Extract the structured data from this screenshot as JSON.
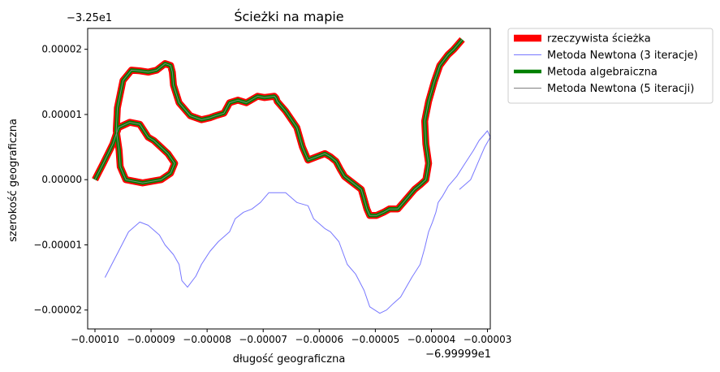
{
  "chart_data": {
    "type": "line",
    "title": "Ścieżki na mapie",
    "xlabel": "długość geograficzna",
    "ylabel": "szerokość geograficzna",
    "x_offset_label": "−6.99999e1",
    "y_offset_label": "−3.25e1",
    "xlim": [
      -0.0001013,
      -2.95e-05
    ],
    "ylim": [
      -2.29e-05,
      2.32e-05
    ],
    "x_ticks": [
      {
        "value": -0.0001,
        "label": "−0.00010"
      },
      {
        "value": -9e-05,
        "label": "−0.00009"
      },
      {
        "value": -8e-05,
        "label": "−0.00008"
      },
      {
        "value": -7e-05,
        "label": "−0.00007"
      },
      {
        "value": -6e-05,
        "label": "−0.00006"
      },
      {
        "value": -5e-05,
        "label": "−0.00005"
      },
      {
        "value": -4e-05,
        "label": "−0.00004"
      },
      {
        "value": -3e-05,
        "label": "−0.00003"
      }
    ],
    "y_ticks": [
      {
        "value": 2e-05,
        "label": "0.00002"
      },
      {
        "value": 1e-05,
        "label": "0.00001"
      },
      {
        "value": 0.0,
        "label": "0.00000"
      },
      {
        "value": -1e-05,
        "label": "−0.00001"
      },
      {
        "value": -2e-05,
        "label": "−0.00002"
      }
    ],
    "grid": false,
    "legend_placement": "outside upper right",
    "series": [
      {
        "name": "rzeczywista ścieżka",
        "color": "#ff0000",
        "style": "thick",
        "x": [
          -0.0001,
          -9.85e-05,
          -9.68e-05,
          -9.58e-05,
          -9.38e-05,
          -9.2e-05,
          -9.05e-05,
          -8.95e-05,
          -8.7e-05,
          -8.58e-05,
          -8.65e-05,
          -8.82e-05,
          -9.15e-05,
          -9.45e-05,
          -9.55e-05,
          -9.57e-05,
          -9.62e-05,
          -9.6e-05,
          -9.5e-05,
          -9.35e-05,
          -9.2e-05,
          -9.05e-05,
          -8.9e-05,
          -8.75e-05,
          -8.65e-05,
          -8.62e-05,
          -8.6e-05,
          -8.5e-05,
          -8.3e-05,
          -8.1e-05,
          -7.95e-05,
          -7.85e-05,
          -7.7e-05,
          -7.6e-05,
          -7.45e-05,
          -7.3e-05,
          -7.1e-05,
          -6.98e-05,
          -6.8e-05,
          -6.77e-05,
          -6.75e-05,
          -6.6e-05,
          -6.4e-05,
          -6.3e-05,
          -6.2e-05,
          -6.05e-05,
          -5.9e-05,
          -5.8e-05,
          -5.7e-05,
          -5.62e-05,
          -5.55e-05,
          -5.4e-05,
          -5.25e-05,
          -5.15e-05,
          -5.1e-05,
          -4.98e-05,
          -4.85e-05,
          -4.75e-05,
          -4.6e-05,
          -4.5e-05,
          -4.4e-05,
          -4.3e-05,
          -4.2e-05,
          -4.1e-05,
          -4.05e-05,
          -4.1e-05,
          -4.12e-05,
          -4.05e-05,
          -3.95e-05,
          -3.85e-05,
          -3.7e-05,
          -3.6e-05,
          -3.45e-05
        ],
        "y": [
          0.0,
          2.5e-06,
          5.5e-06,
          8e-06,
          8.8e-06,
          8.5e-06,
          6.5e-06,
          6e-06,
          4e-06,
          2.5e-06,
          1e-06,
          0.0,
          -5e-07,
          0.0,
          2e-06,
          4.5e-06,
          7.5e-06,
          1.1e-05,
          1.52e-05,
          1.68e-05,
          1.67e-05,
          1.65e-05,
          1.68e-05,
          1.78e-05,
          1.75e-05,
          1.65e-05,
          1.45e-05,
          1.18e-05,
          9.8e-06,
          9.2e-06,
          9.5e-06,
          9.8e-06,
          1.02e-05,
          1.18e-05,
          1.22e-05,
          1.18e-05,
          1.28e-05,
          1.26e-05,
          1.28e-05,
          1.25e-05,
          1.2e-05,
          1.05e-05,
          8e-06,
          5e-06,
          3e-06,
          3.5e-06,
          4e-06,
          3.5e-06,
          2.8e-06,
          1.5e-06,
          5e-07,
          -5e-07,
          -1.5e-06,
          -4.5e-06,
          -5.5e-06,
          -5.5e-06,
          -5e-06,
          -4.5e-06,
          -4.5e-06,
          -3.5e-06,
          -2.5e-06,
          -1.5e-06,
          -8e-07,
          0.0,
          2.5e-06,
          5.5e-06,
          9e-06,
          1.2e-05,
          1.5e-05,
          1.75e-05,
          1.92e-05,
          2e-05,
          2.15e-05
        ]
      },
      {
        "name": "Metoda Newtona (3 iteracje)",
        "color": "#7777ff",
        "style": "thin",
        "x": [
          -9.82e-05,
          -9.7e-05,
          -9.58e-05,
          -9.4e-05,
          -9.2e-05,
          -9.05e-05,
          -8.85e-05,
          -8.75e-05,
          -8.6e-05,
          -8.5e-05,
          -8.45e-05,
          -8.35e-05,
          -8.2e-05,
          -8.1e-05,
          -7.95e-05,
          -7.8e-05,
          -7.6e-05,
          -7.5e-05,
          -7.35e-05,
          -7.2e-05,
          -7.05e-05,
          -6.9e-05,
          -6.8e-05,
          -6.6e-05,
          -6.4e-05,
          -6.2e-05,
          -6.1e-05,
          -5.9e-05,
          -5.8e-05,
          -5.65e-05,
          -5.5e-05,
          -5.35e-05,
          -5.2e-05,
          -5.1e-05,
          -4.92e-05,
          -4.8e-05,
          -4.68e-05,
          -4.55e-05,
          -4.45e-05,
          -4.35e-05,
          -4.2e-05,
          -4.12e-05,
          -4.05e-05,
          -3.98e-05,
          -3.92e-05,
          -3.88e-05,
          -3.8e-05,
          -3.7e-05,
          -3.55e-05,
          -3.4e-05,
          -3.25e-05,
          -3.15e-05,
          -3.05e-05,
          -3e-05,
          -2.95e-05,
          -3.05e-05,
          -3.15e-05,
          -3.25e-05,
          -3.3e-05,
          -3.5e-05
        ],
        "y": [
          -1.5e-05,
          -1.3e-05,
          -1.1e-05,
          -8e-06,
          -6.5e-06,
          -7e-06,
          -8.5e-06,
          -1e-05,
          -1.15e-05,
          -1.3e-05,
          -1.55e-05,
          -1.65e-05,
          -1.48e-05,
          -1.3e-05,
          -1.1e-05,
          -9.5e-06,
          -8e-06,
          -6e-06,
          -5e-06,
          -4.5e-06,
          -3.5e-06,
          -2e-06,
          -2e-06,
          -2e-06,
          -3.5e-06,
          -4e-06,
          -6e-06,
          -7.5e-06,
          -8e-06,
          -9.5e-06,
          -1.3e-05,
          -1.45e-05,
          -1.7e-05,
          -1.95e-05,
          -2.05e-05,
          -2e-05,
          -1.9e-05,
          -1.8e-05,
          -1.65e-05,
          -1.5e-05,
          -1.3e-05,
          -1.05e-05,
          -8e-06,
          -6.5e-06,
          -5e-06,
          -3.5e-06,
          -2.5e-06,
          -1e-06,
          5e-07,
          2.5e-06,
          4.5e-06,
          6e-06,
          7e-06,
          7.5e-06,
          6.5e-06,
          5e-06,
          3e-06,
          1e-06,
          0.0,
          -1.5e-06
        ]
      },
      {
        "name": "Metoda algebraiczna",
        "color": "#008000",
        "style": "medium",
        "same_as": "rzeczywista ścieżka"
      },
      {
        "name": "Metoda Newtona (5 iteracji)",
        "color": "#808080",
        "style": "thin",
        "same_as": "rzeczywista ścieżka"
      }
    ]
  }
}
